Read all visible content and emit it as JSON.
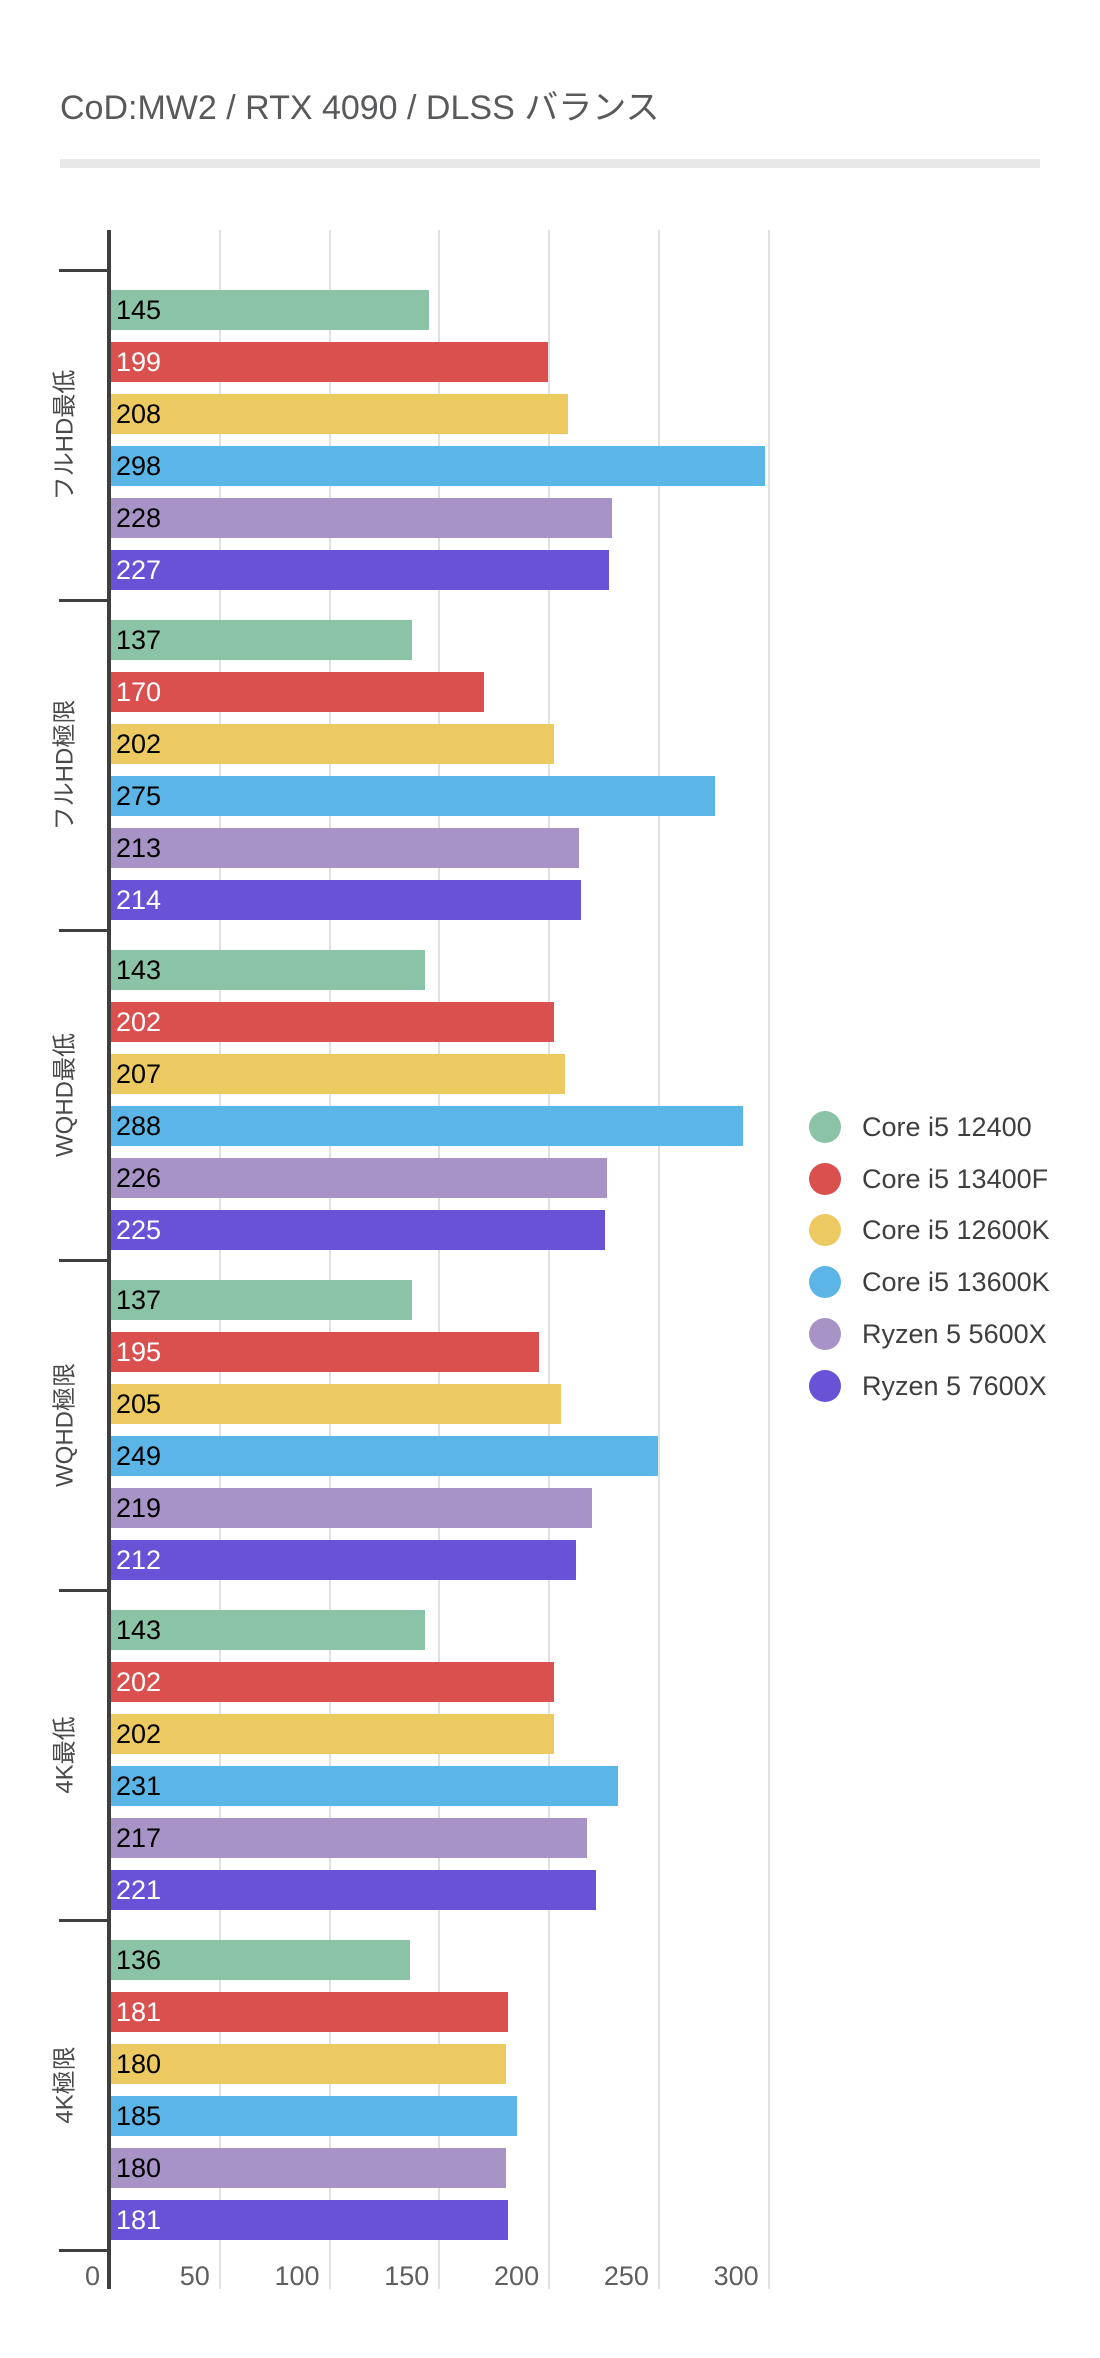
{
  "title": "CoD:MW2 / RTX 4090 / DLSS バランス",
  "chart_data": {
    "type": "bar",
    "orientation": "horizontal",
    "title": "CoD:MW2 / RTX 4090 / DLSS バランス",
    "categories": [
      "フルHD最低",
      "フルHD極限",
      "WQHD最低",
      "WQHD極限",
      "4K最低",
      "4K極限"
    ],
    "series": [
      {
        "name": "Core i5 12400",
        "color": "#8bc3a6",
        "label_color": "#000000",
        "values": [
          145,
          137,
          143,
          137,
          143,
          136
        ]
      },
      {
        "name": "Core i5 13400F",
        "color": "#d9504f",
        "label_color": "#ffffff",
        "values": [
          199,
          170,
          202,
          195,
          202,
          181
        ]
      },
      {
        "name": "Core i5 12600K",
        "color": "#edc962",
        "label_color": "#000000",
        "values": [
          208,
          202,
          207,
          205,
          202,
          180
        ]
      },
      {
        "name": "Core i5 13600K",
        "color": "#5bb5e6",
        "label_color": "#000000",
        "values": [
          298,
          275,
          288,
          249,
          231,
          185
        ]
      },
      {
        "name": "Ryzen 5 5600X",
        "color": "#a893c7",
        "label_color": "#000000",
        "values": [
          228,
          213,
          226,
          219,
          217,
          180
        ]
      },
      {
        "name": "Ryzen 5 7600X",
        "color": "#6952d6",
        "label_color": "#ffffff",
        "values": [
          227,
          214,
          225,
          212,
          221,
          181
        ]
      }
    ],
    "xlabel": "",
    "ylabel": "",
    "x_axis": {
      "ticks": [
        0,
        50,
        100,
        150,
        200,
        250,
        300
      ],
      "min": 0,
      "max": 300
    },
    "grid": true,
    "legend_position": "right",
    "value_labels": "inside-left",
    "colors": {
      "axis": "#3f3f3f",
      "gridline": "#e1e1e1",
      "tick_label": "#5e5e5e",
      "category_label": "#4a4a4a",
      "title": "#58595b",
      "divider": "#e8e8e8",
      "legend_text": "#3e3e3e"
    }
  }
}
